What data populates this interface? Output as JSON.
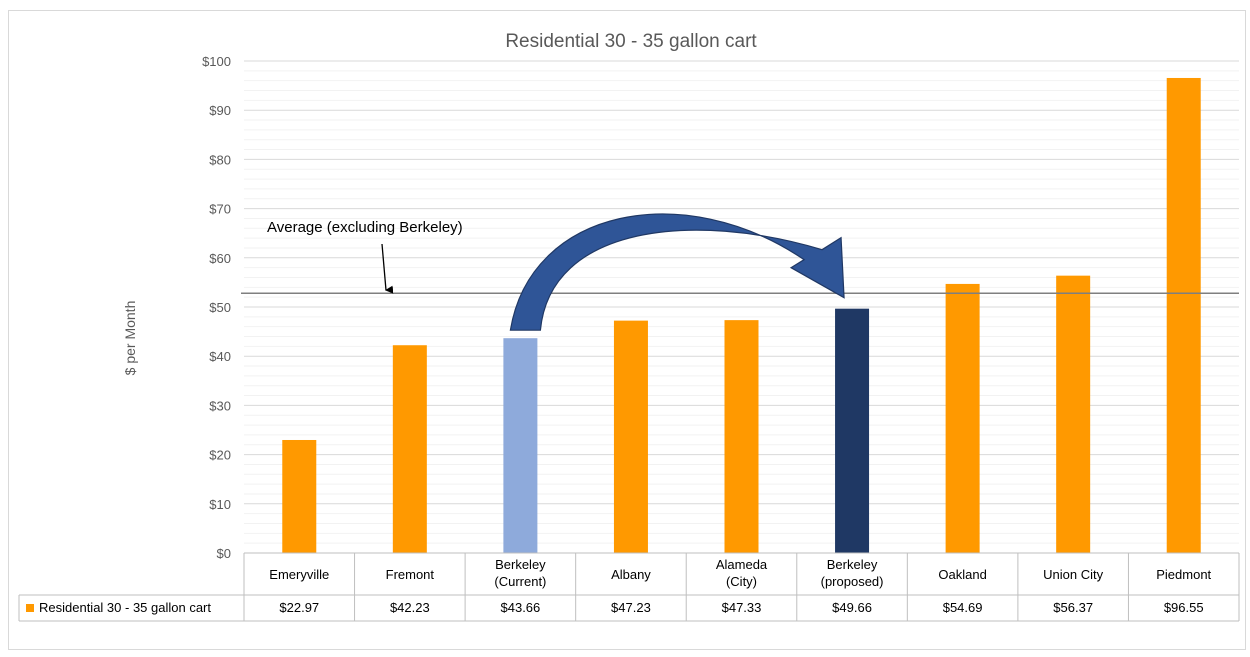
{
  "chart_data": {
    "type": "bar",
    "title": "Residential 30 - 35 gallon cart",
    "xlabel": "",
    "ylabel": "$ per Month",
    "ylim": [
      0,
      100
    ],
    "y_ticks": [
      "$0",
      "$10",
      "$20",
      "$30",
      "$40",
      "$50",
      "$60",
      "$70",
      "$80",
      "$90",
      "$100"
    ],
    "y_tick_values": [
      0,
      10,
      20,
      30,
      40,
      50,
      60,
      70,
      80,
      90,
      100
    ],
    "categories": [
      [
        "Emeryville"
      ],
      [
        "Fremont"
      ],
      [
        "Berkeley",
        "(Current)"
      ],
      [
        "Albany"
      ],
      [
        "Alameda",
        "(City)"
      ],
      [
        "Berkeley",
        "(proposed)"
      ],
      [
        "Oakland"
      ],
      [
        "Union City"
      ],
      [
        "Piedmont"
      ]
    ],
    "series": [
      {
        "name": "Residential 30 - 35 gallon cart",
        "values": [
          22.97,
          42.23,
          43.66,
          47.23,
          47.33,
          49.66,
          54.69,
          56.37,
          96.55
        ],
        "value_labels": [
          "$22.97",
          "$42.23",
          "$43.66",
          "$47.23",
          "$47.33",
          "$49.66",
          "$54.69",
          "$56.37",
          "$96.55"
        ],
        "color": "#ff9900",
        "bar_colors": [
          "#ff9900",
          "#ff9900",
          "#8eaadb",
          "#ff9900",
          "#ff9900",
          "#1f3864",
          "#ff9900",
          "#ff9900",
          "#ff9900"
        ]
      }
    ],
    "reference_line": {
      "value": 52.8,
      "color": "#7f7f7f"
    },
    "annotations": [
      {
        "text": "Average (excluding Berkeley)",
        "type": "label-with-down-arrow"
      },
      {
        "text": "",
        "type": "curved-arrow",
        "from_category": 2,
        "to_category": 5,
        "color": "#2f5597"
      }
    ],
    "grid": true,
    "legend": "data-table-row",
    "data_table": true
  }
}
